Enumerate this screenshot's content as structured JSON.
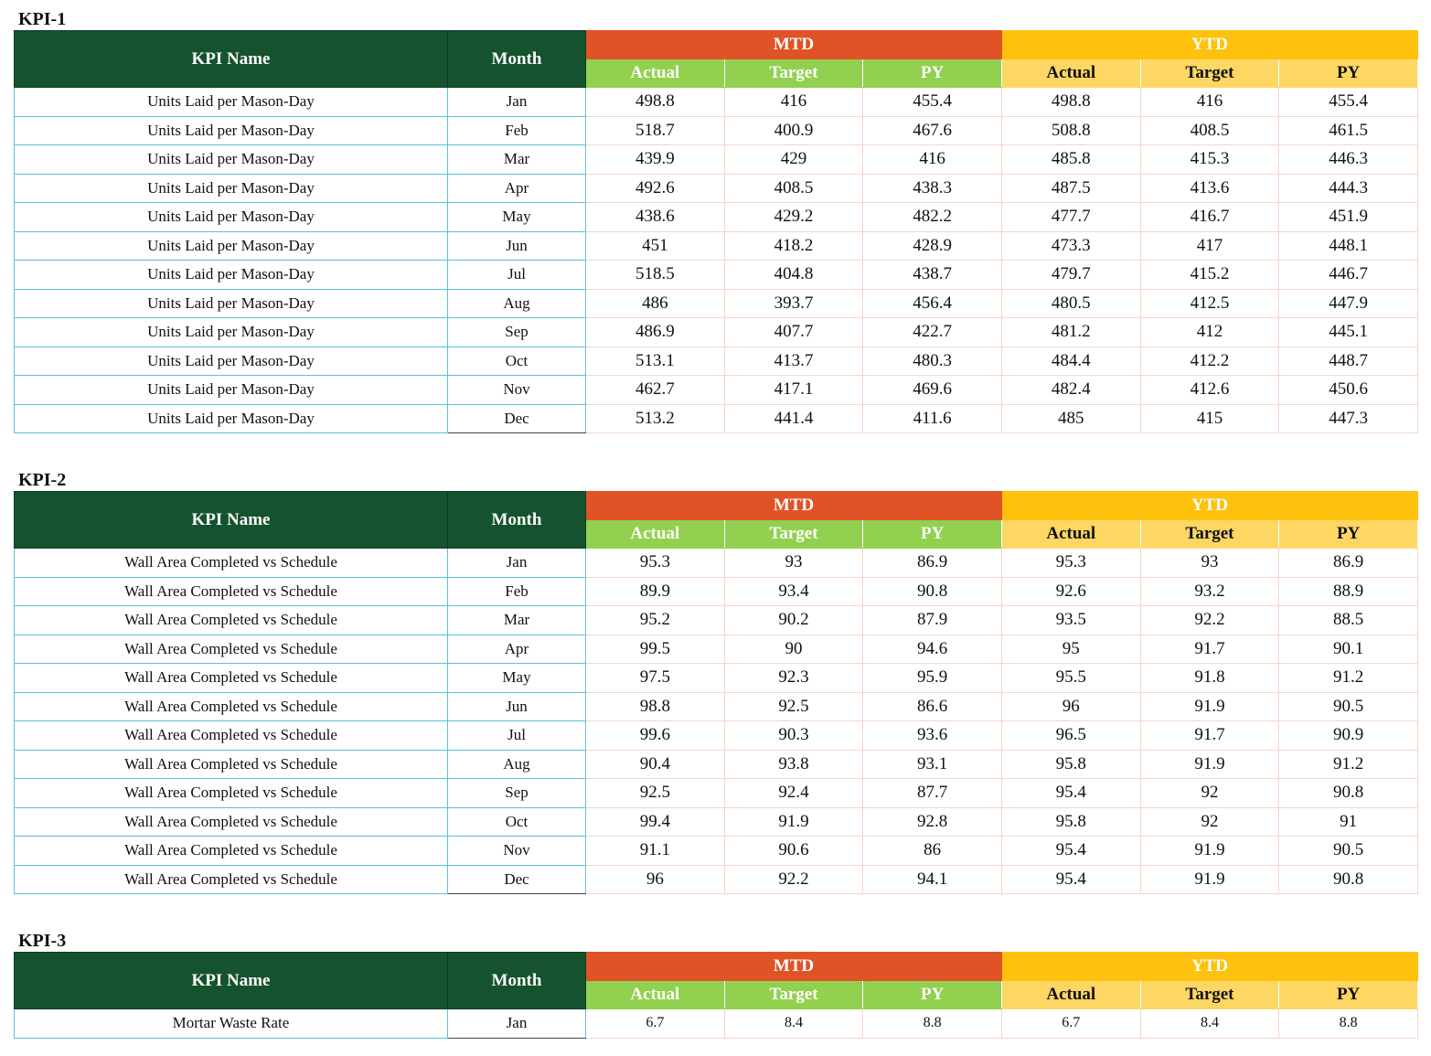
{
  "headers": {
    "kpi_name": "KPI Name",
    "month": "Month",
    "mtd": "MTD",
    "ytd": "YTD",
    "actual": "Actual",
    "target": "Target",
    "py": "PY"
  },
  "kpis": [
    {
      "title": "KPI-1",
      "name": "Units Laid per Mason-Day",
      "rows": [
        {
          "month": "Jan",
          "mtd_actual": "498.8",
          "mtd_target": "416",
          "mtd_py": "455.4",
          "ytd_actual": "498.8",
          "ytd_target": "416",
          "ytd_py": "455.4"
        },
        {
          "month": "Feb",
          "mtd_actual": "518.7",
          "mtd_target": "400.9",
          "mtd_py": "467.6",
          "ytd_actual": "508.8",
          "ytd_target": "408.5",
          "ytd_py": "461.5"
        },
        {
          "month": "Mar",
          "mtd_actual": "439.9",
          "mtd_target": "429",
          "mtd_py": "416",
          "ytd_actual": "485.8",
          "ytd_target": "415.3",
          "ytd_py": "446.3"
        },
        {
          "month": "Apr",
          "mtd_actual": "492.6",
          "mtd_target": "408.5",
          "mtd_py": "438.3",
          "ytd_actual": "487.5",
          "ytd_target": "413.6",
          "ytd_py": "444.3"
        },
        {
          "month": "May",
          "mtd_actual": "438.6",
          "mtd_target": "429.2",
          "mtd_py": "482.2",
          "ytd_actual": "477.7",
          "ytd_target": "416.7",
          "ytd_py": "451.9"
        },
        {
          "month": "Jun",
          "mtd_actual": "451",
          "mtd_target": "418.2",
          "mtd_py": "428.9",
          "ytd_actual": "473.3",
          "ytd_target": "417",
          "ytd_py": "448.1"
        },
        {
          "month": "Jul",
          "mtd_actual": "518.5",
          "mtd_target": "404.8",
          "mtd_py": "438.7",
          "ytd_actual": "479.7",
          "ytd_target": "415.2",
          "ytd_py": "446.7"
        },
        {
          "month": "Aug",
          "mtd_actual": "486",
          "mtd_target": "393.7",
          "mtd_py": "456.4",
          "ytd_actual": "480.5",
          "ytd_target": "412.5",
          "ytd_py": "447.9"
        },
        {
          "month": "Sep",
          "mtd_actual": "486.9",
          "mtd_target": "407.7",
          "mtd_py": "422.7",
          "ytd_actual": "481.2",
          "ytd_target": "412",
          "ytd_py": "445.1"
        },
        {
          "month": "Oct",
          "mtd_actual": "513.1",
          "mtd_target": "413.7",
          "mtd_py": "480.3",
          "ytd_actual": "484.4",
          "ytd_target": "412.2",
          "ytd_py": "448.7"
        },
        {
          "month": "Nov",
          "mtd_actual": "462.7",
          "mtd_target": "417.1",
          "mtd_py": "469.6",
          "ytd_actual": "482.4",
          "ytd_target": "412.6",
          "ytd_py": "450.6"
        },
        {
          "month": "Dec",
          "mtd_actual": "513.2",
          "mtd_target": "441.4",
          "mtd_py": "411.6",
          "ytd_actual": "485",
          "ytd_target": "415",
          "ytd_py": "447.3"
        }
      ]
    },
    {
      "title": "KPI-2",
      "name": "Wall Area Completed vs Schedule",
      "rows": [
        {
          "month": "Jan",
          "mtd_actual": "95.3",
          "mtd_target": "93",
          "mtd_py": "86.9",
          "ytd_actual": "95.3",
          "ytd_target": "93",
          "ytd_py": "86.9"
        },
        {
          "month": "Feb",
          "mtd_actual": "89.9",
          "mtd_target": "93.4",
          "mtd_py": "90.8",
          "ytd_actual": "92.6",
          "ytd_target": "93.2",
          "ytd_py": "88.9"
        },
        {
          "month": "Mar",
          "mtd_actual": "95.2",
          "mtd_target": "90.2",
          "mtd_py": "87.9",
          "ytd_actual": "93.5",
          "ytd_target": "92.2",
          "ytd_py": "88.5"
        },
        {
          "month": "Apr",
          "mtd_actual": "99.5",
          "mtd_target": "90",
          "mtd_py": "94.6",
          "ytd_actual": "95",
          "ytd_target": "91.7",
          "ytd_py": "90.1"
        },
        {
          "month": "May",
          "mtd_actual": "97.5",
          "mtd_target": "92.3",
          "mtd_py": "95.9",
          "ytd_actual": "95.5",
          "ytd_target": "91.8",
          "ytd_py": "91.2"
        },
        {
          "month": "Jun",
          "mtd_actual": "98.8",
          "mtd_target": "92.5",
          "mtd_py": "86.6",
          "ytd_actual": "96",
          "ytd_target": "91.9",
          "ytd_py": "90.5"
        },
        {
          "month": "Jul",
          "mtd_actual": "99.6",
          "mtd_target": "90.3",
          "mtd_py": "93.6",
          "ytd_actual": "96.5",
          "ytd_target": "91.7",
          "ytd_py": "90.9"
        },
        {
          "month": "Aug",
          "mtd_actual": "90.4",
          "mtd_target": "93.8",
          "mtd_py": "93.1",
          "ytd_actual": "95.8",
          "ytd_target": "91.9",
          "ytd_py": "91.2"
        },
        {
          "month": "Sep",
          "mtd_actual": "92.5",
          "mtd_target": "92.4",
          "mtd_py": "87.7",
          "ytd_actual": "95.4",
          "ytd_target": "92",
          "ytd_py": "90.8"
        },
        {
          "month": "Oct",
          "mtd_actual": "99.4",
          "mtd_target": "91.9",
          "mtd_py": "92.8",
          "ytd_actual": "95.8",
          "ytd_target": "92",
          "ytd_py": "91"
        },
        {
          "month": "Nov",
          "mtd_actual": "91.1",
          "mtd_target": "90.6",
          "mtd_py": "86",
          "ytd_actual": "95.4",
          "ytd_target": "91.9",
          "ytd_py": "90.5"
        },
        {
          "month": "Dec",
          "mtd_actual": "96",
          "mtd_target": "92.2",
          "mtd_py": "94.1",
          "ytd_actual": "95.4",
          "ytd_target": "91.9",
          "ytd_py": "90.8"
        }
      ]
    },
    {
      "title": "KPI-3",
      "name": "Mortar Waste Rate",
      "small": true,
      "rows": [
        {
          "month": "Jan",
          "mtd_actual": "6.7",
          "mtd_target": "8.4",
          "mtd_py": "8.8",
          "ytd_actual": "6.7",
          "ytd_target": "8.4",
          "ytd_py": "8.8"
        }
      ]
    }
  ]
}
